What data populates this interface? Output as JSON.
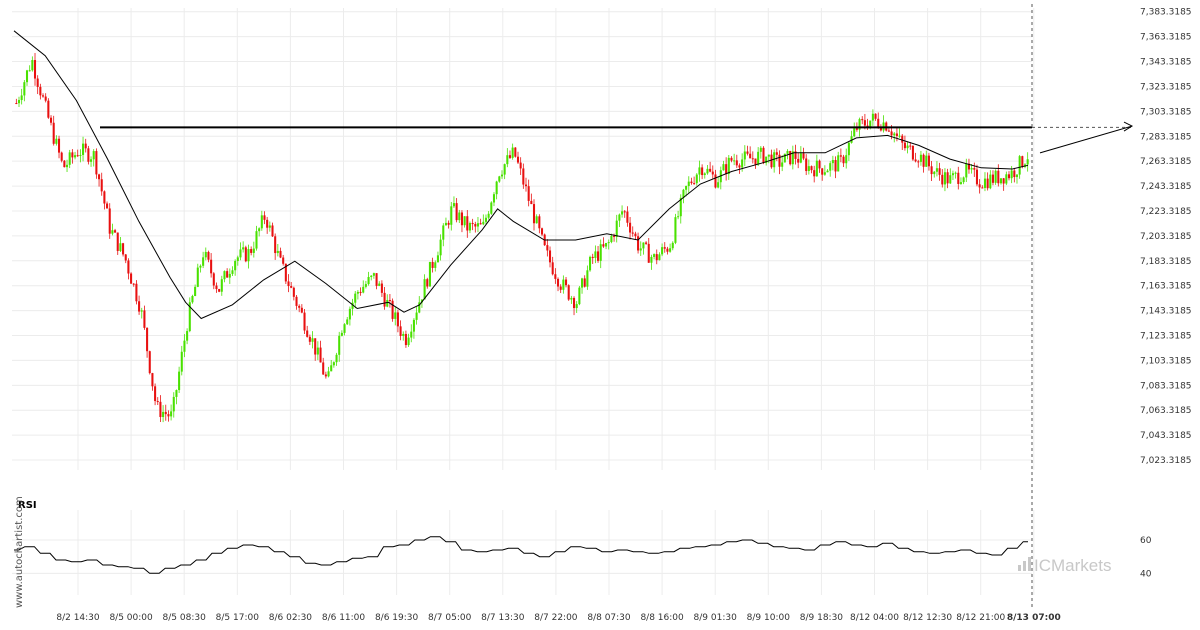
{
  "chart_data": {
    "type": "candlestick",
    "y_ticks": [
      "7,383.3185",
      "7,363.3185",
      "7,343.3185",
      "7,323.3185",
      "7,303.3185",
      "7,283.3185",
      "7,263.3185",
      "7,243.3185",
      "7,223.3185",
      "7,203.3185",
      "7,183.3185",
      "7,163.3185",
      "7,143.3185",
      "7,123.3185",
      "7,103.3185",
      "7,083.3185",
      "7,063.3185",
      "7,043.3185",
      "7,023.3185"
    ],
    "ylim": [
      7015.3185,
      7386.3185
    ],
    "x_ticks": [
      "8/2 14:30",
      "8/5 00:00",
      "8/5 08:30",
      "8/5 17:00",
      "8/6 02:30",
      "8/6 11:00",
      "8/6 19:30",
      "8/7 05:00",
      "8/7 13:30",
      "8/7 22:00",
      "8/8 07:30",
      "8/8 16:00",
      "8/9 01:30",
      "8/9 10:00",
      "8/9 18:30",
      "8/12 04:00",
      "8/12 12:30",
      "8/12 21:00",
      "8/13 07:00"
    ],
    "price_path": [
      [
        0,
        7310
      ],
      [
        1,
        7345
      ],
      [
        2,
        7300
      ],
      [
        3,
        7258
      ],
      [
        4,
        7272
      ],
      [
        5,
        7268
      ],
      [
        6,
        7210
      ],
      [
        7,
        7185
      ],
      [
        8,
        7145
      ],
      [
        9,
        7065
      ],
      [
        10,
        7058
      ],
      [
        11,
        7135
      ],
      [
        12,
        7190
      ],
      [
        13,
        7160
      ],
      [
        14,
        7185
      ],
      [
        15,
        7190
      ],
      [
        16,
        7220
      ],
      [
        17,
        7180
      ],
      [
        18,
        7150
      ],
      [
        19,
        7120
      ],
      [
        20,
        7085
      ],
      [
        21,
        7135
      ],
      [
        22,
        7160
      ],
      [
        23,
        7170
      ],
      [
        24,
        7145
      ],
      [
        25,
        7120
      ],
      [
        26,
        7155
      ],
      [
        27,
        7190
      ],
      [
        28,
        7225
      ],
      [
        29,
        7210
      ],
      [
        30,
        7210
      ],
      [
        31,
        7255
      ],
      [
        32,
        7270
      ],
      [
        33,
        7230
      ],
      [
        34,
        7190
      ],
      [
        35,
        7165
      ],
      [
        36,
        7150
      ],
      [
        37,
        7185
      ],
      [
        38,
        7195
      ],
      [
        39,
        7225
      ],
      [
        40,
        7195
      ],
      [
        41,
        7185
      ],
      [
        42,
        7196
      ],
      [
        43,
        7240
      ],
      [
        44,
        7260
      ],
      [
        45,
        7248
      ],
      [
        46,
        7265
      ],
      [
        47,
        7265
      ],
      [
        48,
        7268
      ],
      [
        49,
        7262
      ],
      [
        50,
        7268
      ],
      [
        51,
        7258
      ],
      [
        52,
        7258
      ],
      [
        53,
        7262
      ],
      [
        54,
        7290
      ],
      [
        55,
        7297
      ],
      [
        56,
        7293
      ],
      [
        57,
        7275
      ],
      [
        58,
        7268
      ],
      [
        59,
        7255
      ],
      [
        60,
        7248
      ],
      [
        61,
        7255
      ],
      [
        62,
        7247
      ],
      [
        63,
        7250
      ],
      [
        64,
        7254
      ],
      [
        65,
        7268
      ]
    ],
    "ma_path": [
      [
        0,
        7368
      ],
      [
        2,
        7348
      ],
      [
        4,
        7312
      ],
      [
        6,
        7265
      ],
      [
        8,
        7215
      ],
      [
        10,
        7170
      ],
      [
        11,
        7150
      ],
      [
        12,
        7137
      ],
      [
        14,
        7148
      ],
      [
        16,
        7168
      ],
      [
        18,
        7183
      ],
      [
        20,
        7165
      ],
      [
        22,
        7145
      ],
      [
        24,
        7150
      ],
      [
        25,
        7142
      ],
      [
        26,
        7148
      ],
      [
        28,
        7180
      ],
      [
        30,
        7208
      ],
      [
        31,
        7225
      ],
      [
        32,
        7215
      ],
      [
        34,
        7200
      ],
      [
        36,
        7200
      ],
      [
        38,
        7205
      ],
      [
        40,
        7200
      ],
      [
        42,
        7225
      ],
      [
        44,
        7245
      ],
      [
        46,
        7255
      ],
      [
        48,
        7262
      ],
      [
        50,
        7270
      ],
      [
        52,
        7270
      ],
      [
        54,
        7282
      ],
      [
        56,
        7284
      ],
      [
        58,
        7276
      ],
      [
        60,
        7265
      ],
      [
        62,
        7258
      ],
      [
        64,
        7257
      ],
      [
        65,
        7260
      ]
    ],
    "resistance_level": 7290.5,
    "projection_end": 7291.5,
    "rsi": {
      "title": "RSI",
      "y_ticks": [
        "60",
        "40"
      ],
      "ylim": [
        30,
        72
      ],
      "path": [
        [
          0,
          54
        ],
        [
          1,
          56
        ],
        [
          2,
          52
        ],
        [
          3,
          48
        ],
        [
          4,
          47
        ],
        [
          5,
          48
        ],
        [
          6,
          45
        ],
        [
          7,
          44
        ],
        [
          8,
          43
        ],
        [
          9,
          40
        ],
        [
          10,
          43
        ],
        [
          11,
          45
        ],
        [
          12,
          48
        ],
        [
          13,
          52
        ],
        [
          14,
          55
        ],
        [
          15,
          57
        ],
        [
          16,
          56
        ],
        [
          17,
          53
        ],
        [
          18,
          50
        ],
        [
          19,
          46
        ],
        [
          20,
          45
        ],
        [
          21,
          47
        ],
        [
          22,
          49
        ],
        [
          23,
          50
        ],
        [
          24,
          56
        ],
        [
          25,
          57
        ],
        [
          26,
          60
        ],
        [
          27,
          62
        ],
        [
          28,
          59
        ],
        [
          29,
          54
        ],
        [
          30,
          53
        ],
        [
          31,
          54
        ],
        [
          32,
          55
        ],
        [
          33,
          52
        ],
        [
          34,
          50
        ],
        [
          35,
          53
        ],
        [
          36,
          56
        ],
        [
          37,
          55
        ],
        [
          38,
          53
        ],
        [
          39,
          54
        ],
        [
          40,
          53
        ],
        [
          41,
          52
        ],
        [
          42,
          53
        ],
        [
          43,
          55
        ],
        [
          44,
          56
        ],
        [
          45,
          57
        ],
        [
          46,
          59
        ],
        [
          47,
          60
        ],
        [
          48,
          58
        ],
        [
          49,
          56
        ],
        [
          50,
          55
        ],
        [
          51,
          54
        ],
        [
          52,
          57
        ],
        [
          53,
          59
        ],
        [
          54,
          57
        ],
        [
          55,
          56
        ],
        [
          56,
          58
        ],
        [
          57,
          55
        ],
        [
          58,
          53
        ],
        [
          59,
          52
        ],
        [
          60,
          53
        ],
        [
          61,
          54
        ],
        [
          62,
          52
        ],
        [
          63,
          51
        ],
        [
          64,
          55
        ],
        [
          65,
          59
        ]
      ]
    }
  },
  "watermark": "www.autochartist.com",
  "brand": "ICMarkets"
}
